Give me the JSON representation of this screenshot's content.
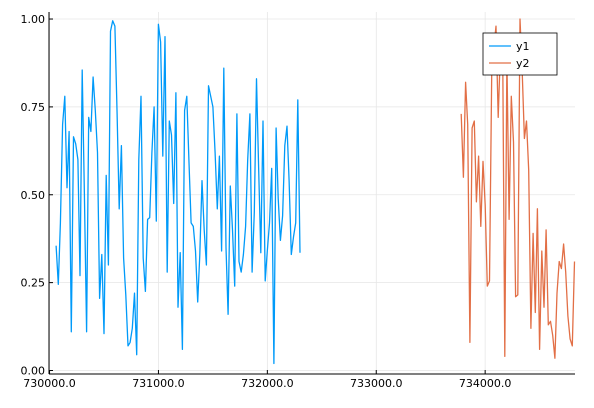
{
  "chart_data": {
    "type": "line",
    "title": "",
    "xlabel": "",
    "ylabel": "",
    "xlim": [
      729995,
      734825
    ],
    "ylim": [
      -0.01,
      1.02
    ],
    "grid": true,
    "legend_position": "top-right",
    "x_ticks": [
      {
        "value": 730000,
        "label": "730000.0"
      },
      {
        "value": 731000,
        "label": "731000.0"
      },
      {
        "value": 732000,
        "label": "732000.0"
      },
      {
        "value": 733000,
        "label": "733000.0"
      },
      {
        "value": 734000,
        "label": "734000.0"
      }
    ],
    "y_ticks": [
      {
        "value": 0.0,
        "label": "0.00"
      },
      {
        "value": 0.25,
        "label": "0.25"
      },
      {
        "value": 0.5,
        "label": "0.50"
      },
      {
        "value": 0.75,
        "label": "0.75"
      },
      {
        "value": 1.0,
        "label": "1.00"
      }
    ],
    "series": [
      {
        "name": "y1",
        "color": "#009af9",
        "x": [
          730060,
          730080,
          730100,
          730120,
          730140,
          730160,
          730180,
          730200,
          730220,
          730240,
          730260,
          730280,
          730300,
          730320,
          730340,
          730360,
          730380,
          730400,
          730420,
          730440,
          730460,
          730480,
          730500,
          730520,
          730540,
          730560,
          730580,
          730600,
          730620,
          730640,
          730660,
          730680,
          730700,
          730720,
          730740,
          730760,
          730780,
          730800,
          730820,
          730840,
          730860,
          730880,
          730900,
          730920,
          730940,
          730960,
          730980,
          731000,
          731020,
          731040,
          731060,
          731080,
          731100,
          731120,
          731140,
          731160,
          731180,
          731200,
          731220,
          731240,
          731260,
          731280,
          731300,
          731320,
          731340,
          731360,
          731380,
          731400,
          731420,
          731440,
          731460,
          731480,
          731500,
          731520,
          731540,
          731560,
          731580,
          731600,
          731620,
          731640,
          731660,
          731680,
          731700,
          731720,
          731740,
          731760,
          731780,
          731800,
          731820,
          731840,
          731860,
          731880,
          731900,
          731920,
          731940,
          731960,
          731980,
          732000,
          732020,
          732040,
          732060,
          732080,
          732100,
          732120,
          732140,
          732160,
          732180,
          732200,
          732220,
          732240,
          732260,
          732280,
          732300
        ],
        "y": [
          0.355,
          0.245,
          0.42,
          0.7,
          0.78,
          0.52,
          0.68,
          0.11,
          0.665,
          0.645,
          0.6,
          0.27,
          0.855,
          0.5,
          0.11,
          0.72,
          0.68,
          0.835,
          0.74,
          0.62,
          0.205,
          0.33,
          0.105,
          0.555,
          0.3,
          0.965,
          0.995,
          0.98,
          0.73,
          0.46,
          0.64,
          0.32,
          0.215,
          0.07,
          0.08,
          0.12,
          0.22,
          0.045,
          0.6,
          0.78,
          0.32,
          0.225,
          0.43,
          0.435,
          0.62,
          0.75,
          0.425,
          0.985,
          0.935,
          0.61,
          0.95,
          0.28,
          0.71,
          0.67,
          0.475,
          0.79,
          0.18,
          0.335,
          0.06,
          0.74,
          0.78,
          0.6,
          0.42,
          0.41,
          0.34,
          0.195,
          0.33,
          0.54,
          0.4,
          0.3,
          0.81,
          0.78,
          0.75,
          0.62,
          0.46,
          0.61,
          0.34,
          0.86,
          0.35,
          0.16,
          0.525,
          0.4,
          0.24,
          0.73,
          0.31,
          0.28,
          0.33,
          0.41,
          0.6,
          0.73,
          0.28,
          0.45,
          0.83,
          0.58,
          0.335,
          0.71,
          0.255,
          0.34,
          0.42,
          0.575,
          0.02,
          0.69,
          0.49,
          0.37,
          0.44,
          0.64,
          0.695,
          0.54,
          0.33,
          0.38,
          0.42,
          0.77,
          0.335
        ]
      },
      {
        "name": "y2",
        "color": "#e26f46",
        "x": [
          733780,
          733800,
          733820,
          733840,
          733860,
          733880,
          733900,
          733920,
          733940,
          733960,
          733980,
          734000,
          734020,
          734040,
          734060,
          734080,
          734100,
          734120,
          734140,
          734160,
          734180,
          734200,
          734220,
          734240,
          734260,
          734280,
          734300,
          734320,
          734340,
          734360,
          734380,
          734400,
          734420,
          734440,
          734460,
          734480,
          734500,
          734520,
          734540,
          734560,
          734580,
          734600,
          734620,
          734640,
          734660,
          734680,
          734700,
          734720,
          734740,
          734760,
          734780,
          734800,
          734820
        ],
        "y": [
          0.73,
          0.55,
          0.82,
          0.7,
          0.08,
          0.69,
          0.71,
          0.48,
          0.61,
          0.41,
          0.595,
          0.47,
          0.24,
          0.255,
          0.84,
          0.92,
          0.98,
          0.72,
          0.91,
          0.95,
          0.04,
          0.89,
          0.43,
          0.78,
          0.65,
          0.21,
          0.215,
          1.0,
          0.85,
          0.66,
          0.71,
          0.57,
          0.12,
          0.39,
          0.165,
          0.46,
          0.06,
          0.34,
          0.18,
          0.4,
          0.13,
          0.14,
          0.1,
          0.035,
          0.22,
          0.31,
          0.29,
          0.36,
          0.28,
          0.155,
          0.09,
          0.07,
          0.31
        ]
      }
    ]
  }
}
